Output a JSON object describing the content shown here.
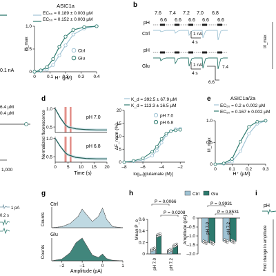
{
  "colors": {
    "ctrl": "#9fc3d4",
    "glu": "#2d7a6e",
    "glu_dark": "#1e5c52",
    "axis": "#222222",
    "shade": "#b9d5df",
    "red_band": "#e3908a"
  },
  "panels": {
    "b": "b",
    "d": "d",
    "e": "e",
    "g": "g",
    "h": "h",
    "i": "i"
  },
  "left_fragments": {
    "current_nA": "0.1 nA",
    "val1": "6.4 µM",
    "val2": "0.4 µM",
    "unit": "1,000",
    "trace_pA": "1 pA",
    "trace_s": "0.2 s"
  },
  "chart_data": [
    {
      "id": "a-asic1a-dose-response",
      "type": "line",
      "title": "ASIC1a",
      "xlabel": "H⁺ (µM)",
      "ylabel": "I/I_max",
      "xlim": [
        0,
        1.0
      ],
      "ylim": [
        0,
        1.0
      ],
      "xticks": [
        "0",
        "0.1",
        "0.2",
        "0.3",
        "0.4"
      ],
      "yticks": [
        "0",
        "0.5",
        "1.0"
      ],
      "annotations": [
        "EC₅₀ = 0.189 ± 0.003 µM",
        "EC₅₀ = 0.152 ± 0.003 µM"
      ],
      "legend": [
        "Ctrl",
        "Glu"
      ],
      "series": [
        {
          "name": "Ctrl",
          "x": [
            0.0,
            0.04,
            0.08,
            0.12,
            0.16,
            0.2,
            0.25,
            0.32,
            0.4
          ],
          "y": [
            0.0,
            0.02,
            0.05,
            0.15,
            0.36,
            0.58,
            0.82,
            0.95,
            1.0
          ]
        },
        {
          "name": "Glu",
          "x": [
            0.0,
            0.04,
            0.08,
            0.12,
            0.16,
            0.2,
            0.25,
            0.32,
            0.4
          ],
          "y": [
            0.0,
            0.03,
            0.1,
            0.28,
            0.55,
            0.77,
            0.92,
            0.98,
            1.0
          ]
        }
      ]
    },
    {
      "id": "b-traces",
      "type": "line",
      "ph_labels": [
        "7.6",
        "7.4",
        "7.2",
        "7.0",
        "6.8"
      ],
      "ph_sub": [
        "6.6",
        "6.6",
        "6.6",
        "6.6",
        "6.6"
      ],
      "row_labels": [
        "Ctrl",
        "Glu"
      ],
      "ph_axis_label": "pH",
      "scalebar": {
        "current": "1 nA",
        "time": "4 s"
      },
      "step_labels": [
        "7.4",
        "6.6"
      ]
    },
    {
      "id": "d-fluorescence-time",
      "type": "line",
      "ylabel": "Normalized fluorescence",
      "xlabel": "Time (s)",
      "xticks": [
        "0",
        "5",
        "10",
        "15",
        "20"
      ],
      "yticks_top": [
        "1.0",
        "0.5"
      ],
      "yticks_bottom": [
        "1.0",
        "0.5"
      ],
      "series": [
        {
          "name": "pH 7.0",
          "x": [
            0,
            2,
            4,
            5,
            8,
            12,
            16,
            20
          ],
          "y": [
            1.0,
            0.75,
            0.55,
            0.5,
            0.45,
            0.43,
            0.42,
            0.42
          ]
        },
        {
          "name": "pH 6.8",
          "x": [
            0,
            2,
            4,
            5,
            8,
            12,
            16,
            20
          ],
          "y": [
            1.0,
            0.78,
            0.6,
            0.55,
            0.48,
            0.45,
            0.44,
            0.44
          ]
        }
      ]
    },
    {
      "id": "d-dose-glutamate",
      "type": "scatter",
      "xlabel": "log₁₀[glutamate (M)]",
      "ylabel": "ΔF_norm (%)",
      "xticks": [
        "–8",
        "–6",
        "–4",
        "–2"
      ],
      "yticks": [
        "0",
        "5",
        "10",
        "15",
        "20"
      ],
      "annotations": [
        "K_d = 392.5 ± 67.9 µM",
        "K_d = 113.3 ± 16.5 µM"
      ],
      "legend": [
        "pH 7.0",
        "pH 6.8"
      ],
      "series": [
        {
          "name": "pH 7.0",
          "x": [
            -8,
            -7,
            -6,
            -5,
            -4.5,
            -4,
            -3.5,
            -3,
            -2.5,
            -2
          ],
          "y": [
            0,
            0.3,
            0.8,
            2.5,
            4.5,
            7.5,
            10.5,
            12.0,
            12.8,
            13.0
          ]
        },
        {
          "name": "pH 6.8",
          "x": [
            -8,
            -7,
            -6,
            -5,
            -4.5,
            -4,
            -3.5,
            -3,
            -2.5,
            -2
          ],
          "y": [
            0,
            0.5,
            1.5,
            4.0,
            6.0,
            9.0,
            11.0,
            12.0,
            12.3,
            12.5
          ]
        }
      ]
    },
    {
      "id": "e-asic1a2a-dose-response",
      "type": "line",
      "title": "ASIC1a/2a",
      "xlabel": "H⁺ (µM)",
      "ylabel": "I/I_max",
      "xticks": [
        "0",
        "0.1",
        "0.2",
        "0.3"
      ],
      "yticks": [
        "0",
        "0.5",
        "1.0"
      ],
      "annotations": [
        "EC₅₀ = 0.2 ± 0.002 µM",
        "EC₅₀ = 0.167 ± 0.002 µM"
      ],
      "series": [
        {
          "name": "Ctrl",
          "x": [
            0.0,
            0.05,
            0.1,
            0.15,
            0.2,
            0.25,
            0.3
          ],
          "y": [
            0.0,
            0.01,
            0.06,
            0.3,
            0.7,
            0.93,
            1.0
          ]
        },
        {
          "name": "Glu",
          "x": [
            0.0,
            0.05,
            0.1,
            0.15,
            0.2,
            0.25,
            0.3
          ],
          "y": [
            0.0,
            0.02,
            0.12,
            0.52,
            0.86,
            0.98,
            1.0
          ]
        }
      ]
    },
    {
      "id": "g-amplitude-histograms",
      "type": "area",
      "xlabel": "Amplitude (pA)",
      "ylabel": "Counts",
      "xticks": [
        "–2",
        "–1",
        "0",
        "1"
      ],
      "rows": [
        {
          "label": "Ctrl",
          "x": [
            -2.5,
            -2.0,
            -1.6,
            -1.2,
            -1.0,
            -0.8,
            -0.5,
            -0.2,
            0,
            0.2,
            0.5,
            1.0
          ],
          "y": [
            0,
            0.05,
            0.2,
            0.55,
            0.9,
            0.65,
            0.3,
            0.55,
            0.95,
            0.4,
            0.05,
            0
          ]
        },
        {
          "label": "Glu",
          "x": [
            -2.5,
            -2.0,
            -1.6,
            -1.3,
            -1.0,
            -0.8,
            -0.5,
            -0.2,
            0,
            0.2,
            0.5,
            1.0
          ],
          "y": [
            0,
            0.08,
            0.35,
            0.8,
            1.0,
            0.7,
            0.25,
            0.15,
            0.3,
            0.1,
            0.02,
            0
          ]
        }
      ]
    },
    {
      "id": "h-mean-po",
      "type": "bar",
      "ylabel": "Mean P_o",
      "categories": [
        "pH 7.0",
        "pH 7.2"
      ],
      "yticks": [
        "0",
        "0.2",
        "0.4",
        "0.6"
      ],
      "annotations": [
        "P = 0.0066",
        "P = 0.0208"
      ],
      "legend": [
        "Ctrl",
        "Glu"
      ],
      "series": [
        {
          "name": "Ctrl",
          "values": [
            0.08,
            0.06
          ]
        },
        {
          "name": "Glu",
          "values": [
            0.33,
            0.15
          ]
        }
      ]
    },
    {
      "id": "h-amplitude",
      "type": "bar",
      "ylabel": "Amplitude (pA)",
      "categories": [
        "pH 7.0",
        "pH 7.2"
      ],
      "yticks": [
        "–2.0",
        "–1.5",
        "–1.0",
        "–0.5",
        "0"
      ],
      "annotations": [
        "P = 0.9931",
        "P = 0.8531"
      ],
      "series": [
        {
          "name": "Ctrl",
          "values": [
            -1.35,
            -1.28
          ]
        },
        {
          "name": "Glu",
          "values": [
            -1.38,
            -1.3
          ]
        }
      ]
    },
    {
      "id": "i-fold-change",
      "type": "bar",
      "ylabel": "Fold change in amplitude",
      "ph_label": "pH"
    }
  ]
}
